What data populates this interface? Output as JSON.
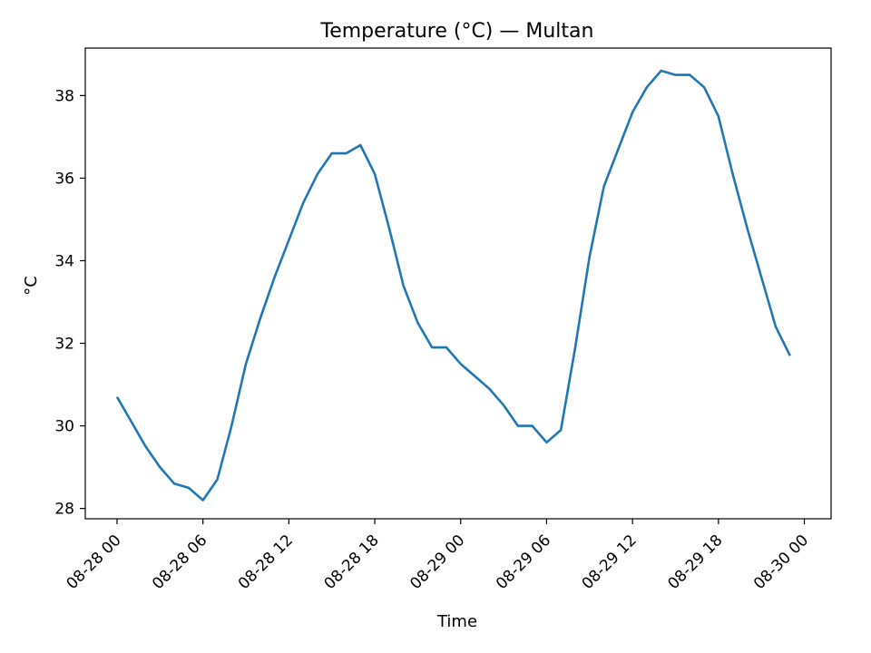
{
  "chart_data": {
    "type": "line",
    "title": "Temperature (°C) — Multan",
    "xlabel": "Time",
    "ylabel": "°C",
    "ylim": [
      27.75,
      39.15
    ],
    "xlim": [
      "2023-08-27 21:47",
      "2023-08-30 01:52"
    ],
    "grid": false,
    "color": "#1f77b4",
    "x_ticks": [
      {
        "t": "2023-08-28 00:00",
        "label": "08-28 00"
      },
      {
        "t": "2023-08-28 06:00",
        "label": "08-28 06"
      },
      {
        "t": "2023-08-28 12:00",
        "label": "08-28 12"
      },
      {
        "t": "2023-08-28 18:00",
        "label": "08-28 18"
      },
      {
        "t": "2023-08-29 00:00",
        "label": "08-29 00"
      },
      {
        "t": "2023-08-29 06:00",
        "label": "08-29 06"
      },
      {
        "t": "2023-08-29 12:00",
        "label": "08-29 12"
      },
      {
        "t": "2023-08-29 18:00",
        "label": "08-29 18"
      },
      {
        "t": "2023-08-30 00:00",
        "label": "08-30 00"
      }
    ],
    "y_ticks": [
      28,
      30,
      32,
      34,
      36,
      38
    ],
    "series": [
      {
        "x": [
          "2023-08-28 00:00",
          "2023-08-28 01:00",
          "2023-08-28 02:00",
          "2023-08-28 03:00",
          "2023-08-28 04:00",
          "2023-08-28 05:00",
          "2023-08-28 06:00",
          "2023-08-28 07:00",
          "2023-08-28 08:00",
          "2023-08-28 09:00",
          "2023-08-28 10:00",
          "2023-08-28 11:00",
          "2023-08-28 12:00",
          "2023-08-28 13:00",
          "2023-08-28 14:00",
          "2023-08-28 15:00",
          "2023-08-28 16:00",
          "2023-08-28 17:00",
          "2023-08-28 18:00",
          "2023-08-28 19:00",
          "2023-08-28 20:00",
          "2023-08-28 21:00",
          "2023-08-28 22:00",
          "2023-08-28 23:00",
          "2023-08-29 00:00",
          "2023-08-29 01:00",
          "2023-08-29 02:00",
          "2023-08-29 03:00",
          "2023-08-29 04:00",
          "2023-08-29 05:00",
          "2023-08-29 06:00",
          "2023-08-29 07:00",
          "2023-08-29 08:00",
          "2023-08-29 09:00",
          "2023-08-29 10:00",
          "2023-08-29 11:00",
          "2023-08-29 12:00",
          "2023-08-29 13:00",
          "2023-08-29 14:00",
          "2023-08-29 15:00",
          "2023-08-29 16:00",
          "2023-08-29 17:00",
          "2023-08-29 18:00",
          "2023-08-29 19:00",
          "2023-08-29 20:00",
          "2023-08-29 21:00",
          "2023-08-29 22:00",
          "2023-08-29 23:00"
        ],
        "values": [
          30.7,
          30.1,
          29.5,
          29.0,
          28.6,
          28.5,
          28.2,
          28.7,
          30.0,
          31.5,
          32.6,
          33.6,
          34.5,
          35.4,
          36.1,
          36.6,
          36.6,
          36.8,
          36.1,
          34.8,
          33.4,
          32.5,
          31.9,
          31.9,
          31.5,
          31.2,
          30.9,
          30.5,
          30.0,
          30.0,
          29.6,
          29.9,
          31.9,
          34.1,
          35.8,
          36.7,
          37.6,
          38.2,
          38.6,
          38.5,
          38.5,
          38.2,
          37.5,
          36.1,
          34.8,
          33.6,
          32.4,
          31.7
        ]
      }
    ]
  }
}
